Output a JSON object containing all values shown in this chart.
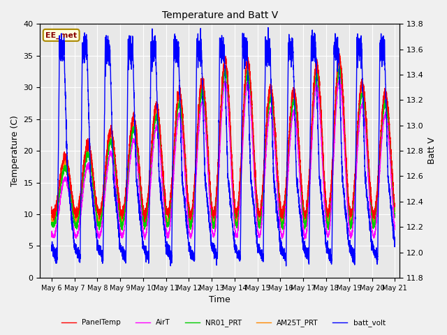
{
  "title": "Temperature and Batt V",
  "xlabel": "Time",
  "ylabel_left": "Temperature (C)",
  "ylabel_right": "Batt V",
  "annotation": "EE_met",
  "xlim_days": [
    5.5,
    21.2
  ],
  "ylim_left": [
    0,
    40
  ],
  "ylim_right": [
    11.8,
    13.8
  ],
  "xtick_labels": [
    "May 6",
    "May 7",
    "May 8",
    "May 9",
    "May 10",
    "May 11",
    "May 12",
    "May 13",
    "May 14",
    "May 15",
    "May 16",
    "May 17",
    "May 18",
    "May 19",
    "May 20",
    "May 21"
  ],
  "xtick_positions": [
    6,
    7,
    8,
    9,
    10,
    11,
    12,
    13,
    14,
    15,
    16,
    17,
    18,
    19,
    20,
    21
  ],
  "yticks_left": [
    0,
    5,
    10,
    15,
    20,
    25,
    30,
    35,
    40
  ],
  "yticks_right": [
    11.8,
    12.0,
    12.2,
    12.4,
    12.6,
    12.8,
    13.0,
    13.2,
    13.4,
    13.6,
    13.8
  ],
  "legend": [
    {
      "label": "PanelTemp",
      "color": "#ff0000"
    },
    {
      "label": "AirT",
      "color": "#ff00ff"
    },
    {
      "label": "NR01_PRT",
      "color": "#00cc00"
    },
    {
      "label": "AM25T_PRT",
      "color": "#ff8800"
    },
    {
      "label": "batt_volt",
      "color": "#0000ff"
    }
  ],
  "fig_bg_color": "#f0f0f0",
  "plot_bg_color": "#e8e8e8",
  "grid_color": "#ffffff",
  "temp_lw": 1.0,
  "batt_lw": 1.0
}
